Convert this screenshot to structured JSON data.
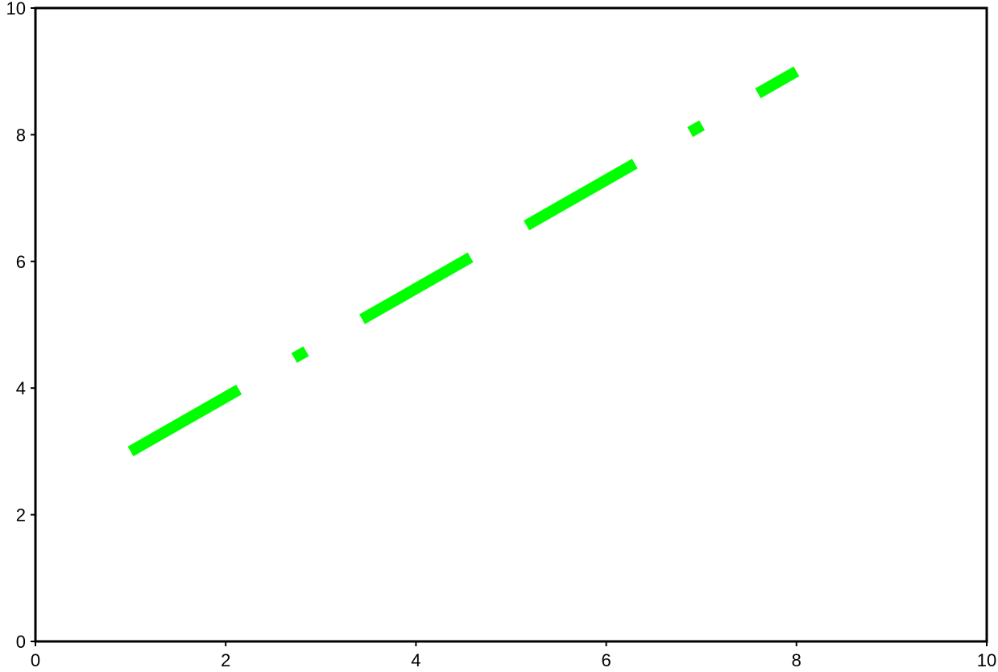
{
  "chart_data": {
    "type": "line",
    "title": "",
    "xlabel": "",
    "ylabel": "",
    "xlim": [
      0,
      10
    ],
    "ylim": [
      0,
      10
    ],
    "grid": false,
    "x_ticks": [
      "0",
      "2",
      "4",
      "6",
      "8",
      "10"
    ],
    "y_ticks": [
      "0",
      "2",
      "4",
      "6",
      "8",
      "10"
    ],
    "series": [
      {
        "x": [
          1,
          8
        ],
        "y": [
          3,
          9
        ],
        "color": "#00ff00",
        "line_style": "dash-dot-dash"
      }
    ]
  }
}
